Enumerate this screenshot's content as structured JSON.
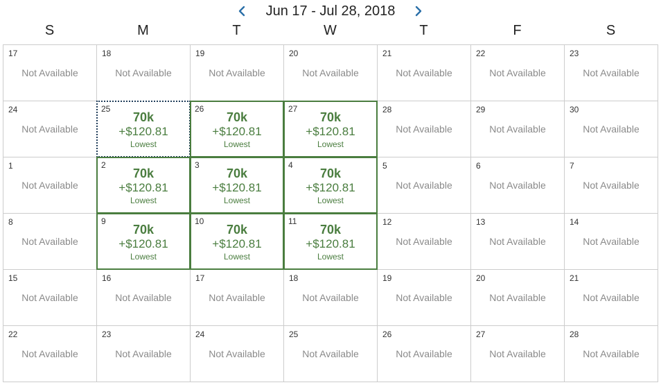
{
  "header": {
    "range_title": "Jun 17 - Jul 28, 2018",
    "prev_icon": "chevron-left-icon",
    "next_icon": "chevron-right-icon",
    "arrow_color": "#2a6fa8"
  },
  "weekdays": [
    "S",
    "M",
    "T",
    "W",
    "T",
    "F",
    "S"
  ],
  "colors": {
    "available": "#4a7d3f",
    "not_available_text": "#8a8a8a",
    "grid_line": "#cccccc",
    "selected_border": "#1f3c59"
  },
  "weeks": [
    [
      {
        "day": "17",
        "status": "Not Available"
      },
      {
        "day": "18",
        "status": "Not Available"
      },
      {
        "day": "19",
        "status": "Not Available"
      },
      {
        "day": "20",
        "status": "Not Available"
      },
      {
        "day": "21",
        "status": "Not Available"
      },
      {
        "day": "22",
        "status": "Not Available"
      },
      {
        "day": "23",
        "status": "Not Available"
      }
    ],
    [
      {
        "day": "24",
        "status": "Not Available"
      },
      {
        "day": "25",
        "available": true,
        "selected": true,
        "miles": "70k",
        "fee": "+$120.81",
        "tag": "Lowest"
      },
      {
        "day": "26",
        "available": true,
        "miles": "70k",
        "fee": "+$120.81",
        "tag": "Lowest"
      },
      {
        "day": "27",
        "available": true,
        "miles": "70k",
        "fee": "+$120.81",
        "tag": "Lowest"
      },
      {
        "day": "28",
        "status": "Not Available"
      },
      {
        "day": "29",
        "status": "Not Available"
      },
      {
        "day": "30",
        "status": "Not Available"
      }
    ],
    [
      {
        "day": "1",
        "status": "Not Available"
      },
      {
        "day": "2",
        "available": true,
        "miles": "70k",
        "fee": "+$120.81",
        "tag": "Lowest"
      },
      {
        "day": "3",
        "available": true,
        "miles": "70k",
        "fee": "+$120.81",
        "tag": "Lowest"
      },
      {
        "day": "4",
        "available": true,
        "miles": "70k",
        "fee": "+$120.81",
        "tag": "Lowest"
      },
      {
        "day": "5",
        "status": "Not Available"
      },
      {
        "day": "6",
        "status": "Not Available"
      },
      {
        "day": "7",
        "status": "Not Available"
      }
    ],
    [
      {
        "day": "8",
        "status": "Not Available"
      },
      {
        "day": "9",
        "available": true,
        "miles": "70k",
        "fee": "+$120.81",
        "tag": "Lowest"
      },
      {
        "day": "10",
        "available": true,
        "miles": "70k",
        "fee": "+$120.81",
        "tag": "Lowest"
      },
      {
        "day": "11",
        "available": true,
        "miles": "70k",
        "fee": "+$120.81",
        "tag": "Lowest"
      },
      {
        "day": "12",
        "status": "Not Available"
      },
      {
        "day": "13",
        "status": "Not Available"
      },
      {
        "day": "14",
        "status": "Not Available"
      }
    ],
    [
      {
        "day": "15",
        "status": "Not Available"
      },
      {
        "day": "16",
        "status": "Not Available"
      },
      {
        "day": "17",
        "status": "Not Available"
      },
      {
        "day": "18",
        "status": "Not Available"
      },
      {
        "day": "19",
        "status": "Not Available"
      },
      {
        "day": "20",
        "status": "Not Available"
      },
      {
        "day": "21",
        "status": "Not Available"
      }
    ],
    [
      {
        "day": "22",
        "status": "Not Available"
      },
      {
        "day": "23",
        "status": "Not Available"
      },
      {
        "day": "24",
        "status": "Not Available"
      },
      {
        "day": "25",
        "status": "Not Available"
      },
      {
        "day": "26",
        "status": "Not Available"
      },
      {
        "day": "27",
        "status": "Not Available"
      },
      {
        "day": "28",
        "status": "Not Available"
      }
    ]
  ]
}
